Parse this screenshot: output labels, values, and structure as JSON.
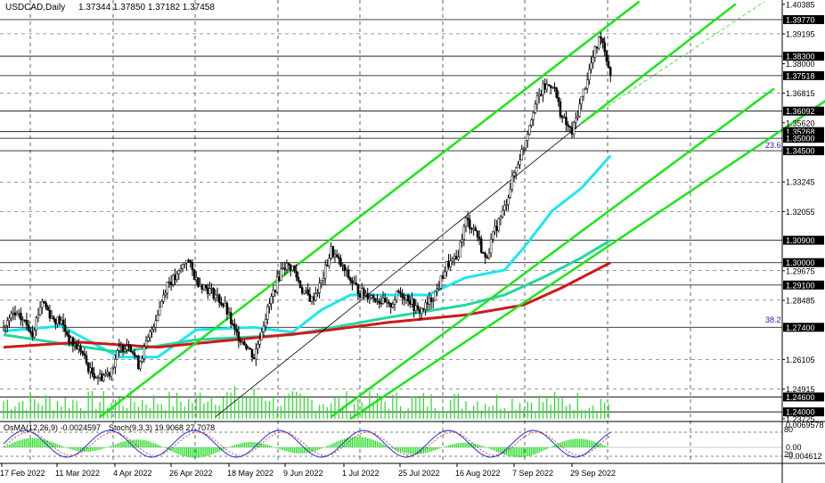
{
  "header": {
    "symbol": "USDCAD,Daily",
    "ohlc": "1.37344 1.37850 1.37182 1.37458"
  },
  "indicator": {
    "osma": "OsMA(12,26,9) -0.0024597",
    "stoch": "Stoch(9,3,3) 19.9068 27.7078",
    "scale_top": "0.0069578",
    "scale_zero": "0.00",
    "scale_bottom": "-0.004612",
    "level_80": "80",
    "level_20": "20"
  },
  "fib_labels": [
    "23.6",
    "38.2"
  ],
  "colors": {
    "background": "#ffffff",
    "candle": "#000000",
    "channel": "#19e619",
    "ema_fast": "#1ee6f0",
    "ema_mid": "#20d8a0",
    "ema_slow": "#d01818",
    "volume": "#22dd22",
    "hline": "#000000",
    "label_box": "#000000"
  },
  "chart_data": {
    "type": "candlestick",
    "symbol": "USDCAD",
    "timeframe": "Daily",
    "ylim": [
      1.2372,
      1.4038
    ],
    "y_ticks": [
      "1.40385",
      "1.39770",
      "1.39195",
      "1.38300",
      "1.38000",
      "1.37518",
      "1.36815",
      "1.36092",
      "1.35620",
      "1.35268",
      "1.35000",
      "1.34500",
      "1.33245",
      "1.32055",
      "1.30900",
      "1.30000",
      "1.29675",
      "1.29100",
      "1.28485",
      "1.27400",
      "1.26105",
      "1.24915",
      "1.24600",
      "1.24000",
      "1.23725"
    ],
    "x_ticks": [
      "17 Feb 2022",
      "11 Mar 2022",
      "4 Apr 2022",
      "26 Apr 2022",
      "18 May 2022",
      "9 Jun 2022",
      "1 Jul 2022",
      "25 Jul 2022",
      "16 Aug 2022",
      "7 Sep 2022",
      "29 Sep 2022"
    ],
    "boxed_levels": [
      "1.39770",
      "1.38300",
      "1.37518",
      "1.36092",
      "1.35268",
      "1.35000",
      "1.34500",
      "1.30900",
      "1.30000",
      "1.29100",
      "1.27400",
      "1.24600",
      "1.24000"
    ],
    "price_path": [
      [
        0,
        1.274
      ],
      [
        5,
        1.279
      ],
      [
        10,
        1.277
      ],
      [
        15,
        1.272
      ],
      [
        20,
        1.285
      ],
      [
        25,
        1.278
      ],
      [
        30,
        1.276
      ],
      [
        35,
        1.268
      ],
      [
        40,
        1.265
      ],
      [
        45,
        1.256
      ],
      [
        50,
        1.254
      ],
      [
        55,
        1.256
      ],
      [
        60,
        1.265
      ],
      [
        65,
        1.268
      ],
      [
        70,
        1.259
      ],
      [
        75,
        1.269
      ],
      [
        80,
        1.28
      ],
      [
        85,
        1.292
      ],
      [
        90,
        1.294
      ],
      [
        95,
        1.302
      ],
      [
        100,
        1.293
      ],
      [
        105,
        1.29
      ],
      [
        110,
        1.287
      ],
      [
        115,
        1.282
      ],
      [
        120,
        1.272
      ],
      [
        125,
        1.268
      ],
      [
        130,
        1.262
      ],
      [
        135,
        1.276
      ],
      [
        140,
        1.288
      ],
      [
        145,
        1.299
      ],
      [
        150,
        1.298
      ],
      [
        155,
        1.289
      ],
      [
        160,
        1.285
      ],
      [
        165,
        1.292
      ],
      [
        170,
        1.305
      ],
      [
        175,
        1.299
      ],
      [
        180,
        1.293
      ],
      [
        185,
        1.288
      ],
      [
        190,
        1.287
      ],
      [
        195,
        1.285
      ],
      [
        200,
        1.282
      ],
      [
        205,
        1.288
      ],
      [
        210,
        1.286
      ],
      [
        215,
        1.28
      ],
      [
        220,
        1.283
      ],
      [
        225,
        1.289
      ],
      [
        230,
        1.299
      ],
      [
        235,
        1.301
      ],
      [
        240,
        1.317
      ],
      [
        245,
        1.313
      ],
      [
        250,
        1.301
      ],
      [
        255,
        1.313
      ],
      [
        260,
        1.322
      ],
      [
        265,
        1.336
      ],
      [
        270,
        1.347
      ],
      [
        275,
        1.362
      ],
      [
        280,
        1.37
      ],
      [
        285,
        1.372
      ],
      [
        290,
        1.358
      ],
      [
        295,
        1.352
      ],
      [
        300,
        1.366
      ],
      [
        305,
        1.38
      ],
      [
        310,
        1.392
      ],
      [
        315,
        1.376
      ]
    ],
    "series": [
      {
        "name": "EMA fast",
        "values": [
          [
            0,
            1.2725
          ],
          [
            30,
            1.2745
          ],
          [
            60,
            1.262
          ],
          [
            80,
            1.262
          ],
          [
            100,
            1.273
          ],
          [
            130,
            1.274
          ],
          [
            150,
            1.272
          ],
          [
            165,
            1.281
          ],
          [
            180,
            1.287
          ],
          [
            200,
            1.287
          ],
          [
            220,
            1.287
          ],
          [
            240,
            1.294
          ],
          [
            260,
            1.297
          ],
          [
            270,
            1.306
          ],
          [
            285,
            1.321
          ],
          [
            300,
            1.33
          ],
          [
            315,
            1.343
          ]
        ]
      },
      {
        "name": "EMA mid",
        "values": [
          [
            0,
            1.271
          ],
          [
            60,
            1.264
          ],
          [
            100,
            1.269
          ],
          [
            150,
            1.271
          ],
          [
            200,
            1.278
          ],
          [
            240,
            1.283
          ],
          [
            260,
            1.287
          ],
          [
            280,
            1.294
          ],
          [
            300,
            1.302
          ],
          [
            315,
            1.309
          ]
        ]
      },
      {
        "name": "EMA slow",
        "values": [
          [
            0,
            1.266
          ],
          [
            40,
            1.268
          ],
          [
            80,
            1.266
          ],
          [
            120,
            1.269
          ],
          [
            160,
            1.272
          ],
          [
            200,
            1.276
          ],
          [
            240,
            1.279
          ],
          [
            270,
            1.283
          ],
          [
            290,
            1.29
          ],
          [
            315,
            1.3
          ]
        ]
      }
    ],
    "channel_lines": [
      {
        "x1": 50,
        "y1": 1.238,
        "x2": 330,
        "y2": 1.405
      },
      {
        "x1": 170,
        "y1": 1.238,
        "x2": 400,
        "y2": 1.37
      },
      {
        "x1": 110,
        "y1": 1.238,
        "x2": 300,
        "y2": 1.356
      },
      {
        "x1": 300,
        "y1": 1.356,
        "x2": 380,
        "y2": 1.404
      }
    ],
    "grid": true,
    "indicator_panel": {
      "name": "OsMA + Stochastic",
      "osma_value": -0.0024597,
      "stoch_k": 19.9068,
      "stoch_d": 27.7078
    }
  }
}
